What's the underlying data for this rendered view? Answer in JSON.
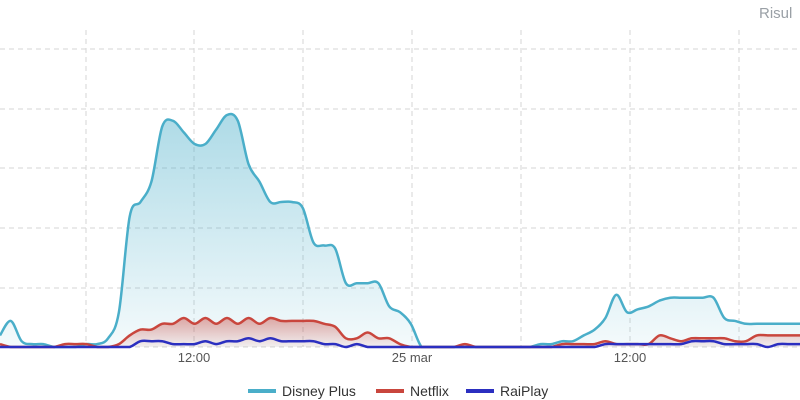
{
  "header": {
    "right_label": "Risul"
  },
  "chart_data": {
    "type": "area",
    "title": "",
    "xlabel": "",
    "ylabel": "",
    "x_tick_labels": [
      "12:00",
      "25 mar",
      "12:00"
    ],
    "y_tick_labels_visible": false,
    "grid": true,
    "legend_placement": "bottom",
    "series": [
      {
        "name": "Disney Plus",
        "color": "#4aaec9",
        "fill": true,
        "values": [
          4,
          9,
          2,
          1,
          1,
          0,
          0,
          0,
          1,
          1,
          3,
          12,
          45,
          50,
          57,
          76,
          78,
          74,
          70,
          70,
          75,
          80,
          78,
          63,
          57,
          50,
          50,
          50,
          48,
          36,
          35,
          34,
          22,
          22,
          22,
          22,
          14,
          12,
          8,
          0,
          0,
          0,
          0,
          0,
          0,
          0,
          0,
          0,
          0,
          0,
          1,
          1,
          2,
          2,
          4,
          6,
          10,
          18,
          12,
          13,
          14,
          16,
          17,
          17,
          17,
          17,
          17,
          10,
          9,
          8,
          8,
          8,
          8,
          8,
          8
        ]
      },
      {
        "name": "Netflix",
        "color": "#c9463d",
        "fill": true,
        "values": [
          1,
          0,
          0,
          0,
          0,
          0,
          1,
          1,
          1,
          0,
          0,
          1,
          4,
          6,
          6,
          8,
          8,
          10,
          8,
          10,
          8,
          10,
          8,
          10,
          8,
          10,
          9,
          9,
          9,
          9,
          8,
          7,
          3,
          3,
          5,
          3,
          3,
          1,
          0,
          0,
          0,
          0,
          0,
          1,
          0,
          0,
          0,
          0,
          0,
          0,
          0,
          0,
          1,
          1,
          1,
          1,
          2,
          1,
          1,
          1,
          1,
          4,
          3,
          2,
          3,
          3,
          3,
          3,
          2,
          2,
          4,
          4,
          4,
          4,
          4
        ]
      },
      {
        "name": "RaiPlay",
        "color": "#2b2fc0",
        "fill": false,
        "values": [
          0,
          0,
          0,
          0,
          0,
          0,
          0,
          0,
          0,
          0,
          0,
          0,
          0,
          2,
          2,
          2,
          1,
          1,
          1,
          2,
          1,
          2,
          2,
          3,
          2,
          3,
          2,
          2,
          2,
          2,
          1,
          1,
          0,
          1,
          0,
          0,
          0,
          0,
          0,
          0,
          0,
          0,
          0,
          0,
          0,
          0,
          0,
          0,
          0,
          0,
          0,
          0,
          0,
          0,
          0,
          0,
          1,
          1,
          1,
          1,
          1,
          1,
          1,
          1,
          2,
          2,
          2,
          1,
          1,
          1,
          1,
          0,
          1,
          1,
          1
        ]
      }
    ]
  }
}
